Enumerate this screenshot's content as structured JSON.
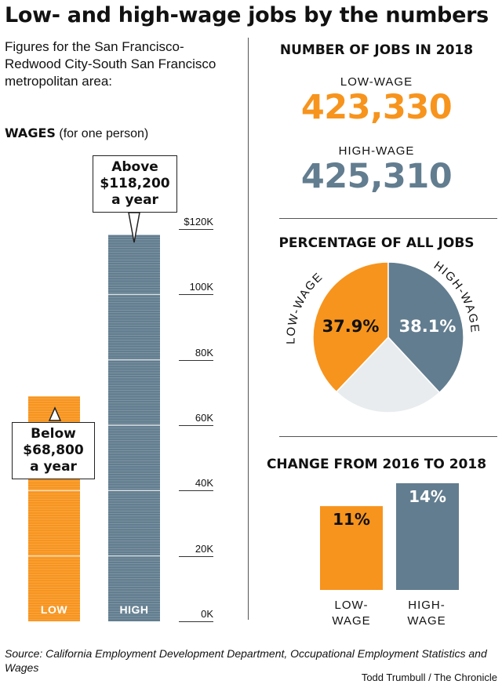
{
  "title": "Low- and high-wage jobs by the numbers",
  "intro": "Figures for the San Francisco-Redwood City-South San Francisco metropolitan area:",
  "wages": {
    "heading_bold": "WAGES",
    "heading_note": "(for one person)",
    "low_callout": [
      "Below",
      "$68,800",
      "a year"
    ],
    "high_callout": [
      "Above",
      "$118,200",
      "a year"
    ]
  },
  "jobs_2018": {
    "heading": "NUMBER OF JOBS IN 2018",
    "low_label": "LOW-WAGE",
    "low_value": "423,330",
    "high_label": "HIGH-WAGE",
    "high_value": "425,310"
  },
  "percentage": {
    "heading": "PERCENTAGE OF ALL JOBS",
    "low_label": "LOW-WAGE",
    "high_label": "HIGH-WAGE"
  },
  "change": {
    "heading": "CHANGE FROM 2016 TO 2018",
    "low_label": [
      "LOW-",
      "WAGE"
    ],
    "high_label": [
      "HIGH-",
      "WAGE"
    ]
  },
  "source": "Source: California Employment Development Department, Occupational Employment Statistics and Wages",
  "credit": "Todd Trumbull / The Chronicle",
  "colors": {
    "low": "#f7941d",
    "high": "#627d8f",
    "other": "#e9ecee",
    "low_text": "#f7941d",
    "high_text": "#627d8f"
  },
  "chart_data": [
    {
      "type": "bar",
      "categories": [
        "LOW",
        "HIGH"
      ],
      "values": [
        68800,
        118200
      ],
      "ylim": [
        0,
        120000
      ],
      "yticks": [
        0,
        20000,
        40000,
        60000,
        80000,
        100000,
        120000
      ],
      "ytick_labels": [
        "0K",
        "20K",
        "40K",
        "60K",
        "80K",
        "100K",
        "$120K"
      ]
    },
    {
      "type": "pie",
      "labels": [
        "LOW-WAGE",
        "HIGH-WAGE",
        ""
      ],
      "values": [
        37.9,
        38.1,
        24.0
      ],
      "value_labels": [
        "37.9%",
        "38.1%",
        ""
      ]
    },
    {
      "type": "bar",
      "categories": [
        "LOW-WAGE",
        "HIGH-WAGE"
      ],
      "values": [
        11,
        14
      ],
      "value_labels": [
        "11%",
        "14%"
      ]
    }
  ]
}
